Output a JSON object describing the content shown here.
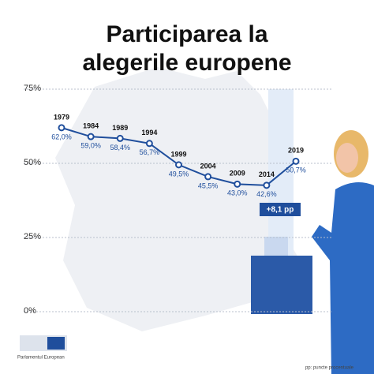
{
  "chart_data": {
    "type": "line",
    "title": "Participarea la alegerile europene",
    "categories": [
      "1979",
      "1984",
      "1989",
      "1994",
      "1999",
      "2004",
      "2009",
      "2014",
      "2019"
    ],
    "values": [
      62.0,
      59.0,
      58.4,
      56.7,
      49.5,
      45.5,
      43.0,
      42.6,
      50.7
    ],
    "value_labels": [
      "62,0%",
      "59,0%",
      "58,4%",
      "56,7%",
      "49,5%",
      "45,5%",
      "43,0%",
      "42,6%",
      "50,7%"
    ],
    "color": "#1f4e9c",
    "ylim": [
      0,
      75
    ],
    "yticks": [
      {
        "value": 0,
        "label": "0%"
      },
      {
        "value": 25,
        "label": "25%"
      },
      {
        "value": 50,
        "label": "50%"
      },
      {
        "value": 75,
        "label": "75%"
      }
    ],
    "grid": true,
    "annotation": "+8,1 pp",
    "footnote": "pp: puncte procentuale",
    "source": "Parlamentul European"
  }
}
